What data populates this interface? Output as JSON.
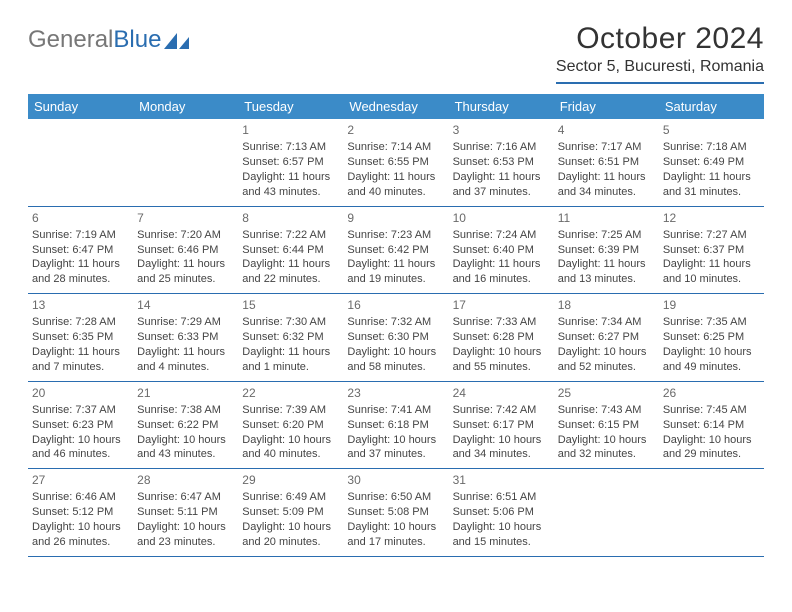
{
  "logo": {
    "text_gray": "General",
    "text_blue": "Blue"
  },
  "title": "October 2024",
  "location": "Sector 5, Bucuresti, Romania",
  "accent_color": "#3b8bc8",
  "rule_color": "#2a6db0",
  "day_names": [
    "Sunday",
    "Monday",
    "Tuesday",
    "Wednesday",
    "Thursday",
    "Friday",
    "Saturday"
  ],
  "weeks": [
    [
      null,
      null,
      {
        "n": "1",
        "sunrise": "7:13 AM",
        "sunset": "6:57 PM",
        "daylight": "11 hours and 43 minutes."
      },
      {
        "n": "2",
        "sunrise": "7:14 AM",
        "sunset": "6:55 PM",
        "daylight": "11 hours and 40 minutes."
      },
      {
        "n": "3",
        "sunrise": "7:16 AM",
        "sunset": "6:53 PM",
        "daylight": "11 hours and 37 minutes."
      },
      {
        "n": "4",
        "sunrise": "7:17 AM",
        "sunset": "6:51 PM",
        "daylight": "11 hours and 34 minutes."
      },
      {
        "n": "5",
        "sunrise": "7:18 AM",
        "sunset": "6:49 PM",
        "daylight": "11 hours and 31 minutes."
      }
    ],
    [
      {
        "n": "6",
        "sunrise": "7:19 AM",
        "sunset": "6:47 PM",
        "daylight": "11 hours and 28 minutes."
      },
      {
        "n": "7",
        "sunrise": "7:20 AM",
        "sunset": "6:46 PM",
        "daylight": "11 hours and 25 minutes."
      },
      {
        "n": "8",
        "sunrise": "7:22 AM",
        "sunset": "6:44 PM",
        "daylight": "11 hours and 22 minutes."
      },
      {
        "n": "9",
        "sunrise": "7:23 AM",
        "sunset": "6:42 PM",
        "daylight": "11 hours and 19 minutes."
      },
      {
        "n": "10",
        "sunrise": "7:24 AM",
        "sunset": "6:40 PM",
        "daylight": "11 hours and 16 minutes."
      },
      {
        "n": "11",
        "sunrise": "7:25 AM",
        "sunset": "6:39 PM",
        "daylight": "11 hours and 13 minutes."
      },
      {
        "n": "12",
        "sunrise": "7:27 AM",
        "sunset": "6:37 PM",
        "daylight": "11 hours and 10 minutes."
      }
    ],
    [
      {
        "n": "13",
        "sunrise": "7:28 AM",
        "sunset": "6:35 PM",
        "daylight": "11 hours and 7 minutes."
      },
      {
        "n": "14",
        "sunrise": "7:29 AM",
        "sunset": "6:33 PM",
        "daylight": "11 hours and 4 minutes."
      },
      {
        "n": "15",
        "sunrise": "7:30 AM",
        "sunset": "6:32 PM",
        "daylight": "11 hours and 1 minute."
      },
      {
        "n": "16",
        "sunrise": "7:32 AM",
        "sunset": "6:30 PM",
        "daylight": "10 hours and 58 minutes."
      },
      {
        "n": "17",
        "sunrise": "7:33 AM",
        "sunset": "6:28 PM",
        "daylight": "10 hours and 55 minutes."
      },
      {
        "n": "18",
        "sunrise": "7:34 AM",
        "sunset": "6:27 PM",
        "daylight": "10 hours and 52 minutes."
      },
      {
        "n": "19",
        "sunrise": "7:35 AM",
        "sunset": "6:25 PM",
        "daylight": "10 hours and 49 minutes."
      }
    ],
    [
      {
        "n": "20",
        "sunrise": "7:37 AM",
        "sunset": "6:23 PM",
        "daylight": "10 hours and 46 minutes."
      },
      {
        "n": "21",
        "sunrise": "7:38 AM",
        "sunset": "6:22 PM",
        "daylight": "10 hours and 43 minutes."
      },
      {
        "n": "22",
        "sunrise": "7:39 AM",
        "sunset": "6:20 PM",
        "daylight": "10 hours and 40 minutes."
      },
      {
        "n": "23",
        "sunrise": "7:41 AM",
        "sunset": "6:18 PM",
        "daylight": "10 hours and 37 minutes."
      },
      {
        "n": "24",
        "sunrise": "7:42 AM",
        "sunset": "6:17 PM",
        "daylight": "10 hours and 34 minutes."
      },
      {
        "n": "25",
        "sunrise": "7:43 AM",
        "sunset": "6:15 PM",
        "daylight": "10 hours and 32 minutes."
      },
      {
        "n": "26",
        "sunrise": "7:45 AM",
        "sunset": "6:14 PM",
        "daylight": "10 hours and 29 minutes."
      }
    ],
    [
      {
        "n": "27",
        "sunrise": "6:46 AM",
        "sunset": "5:12 PM",
        "daylight": "10 hours and 26 minutes."
      },
      {
        "n": "28",
        "sunrise": "6:47 AM",
        "sunset": "5:11 PM",
        "daylight": "10 hours and 23 minutes."
      },
      {
        "n": "29",
        "sunrise": "6:49 AM",
        "sunset": "5:09 PM",
        "daylight": "10 hours and 20 minutes."
      },
      {
        "n": "30",
        "sunrise": "6:50 AM",
        "sunset": "5:08 PM",
        "daylight": "10 hours and 17 minutes."
      },
      {
        "n": "31",
        "sunrise": "6:51 AM",
        "sunset": "5:06 PM",
        "daylight": "10 hours and 15 minutes."
      },
      null,
      null
    ]
  ],
  "labels": {
    "sunrise_prefix": "Sunrise: ",
    "sunset_prefix": "Sunset: ",
    "daylight_prefix": "Daylight: "
  }
}
